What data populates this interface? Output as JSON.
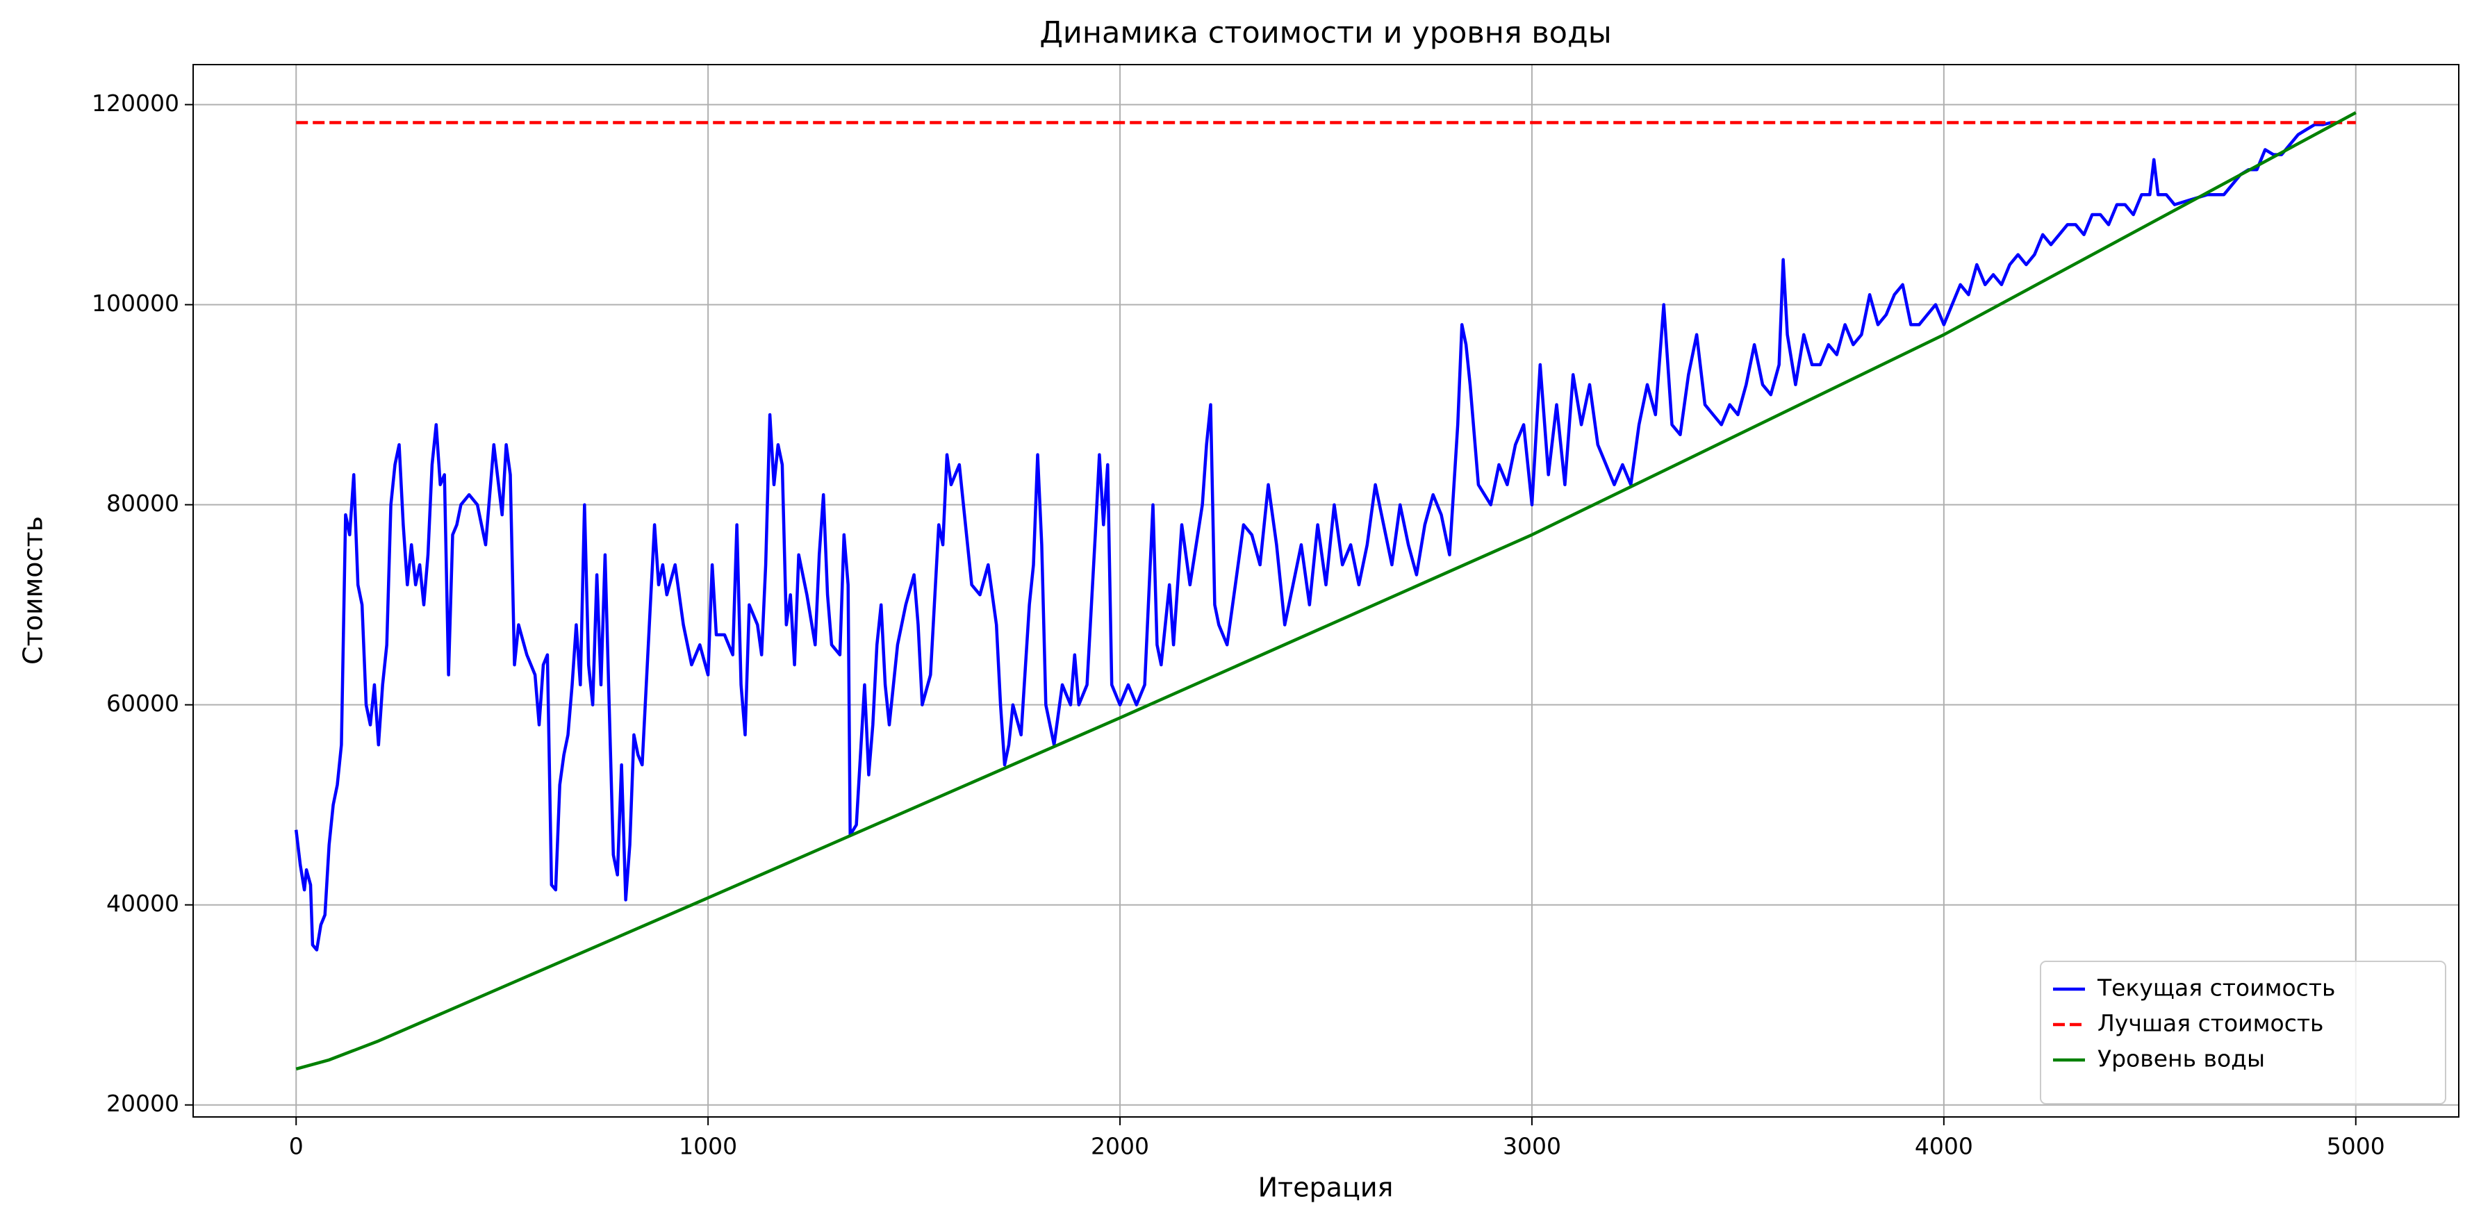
{
  "chart_data": {
    "type": "line",
    "title": "Динамика стоимости и уровня воды",
    "xlabel": "Итерация",
    "ylabel": "Стоимость",
    "xlim": [
      -250,
      5250
    ],
    "ylim": [
      18800,
      124000
    ],
    "xticks": [
      0,
      1000,
      2000,
      3000,
      4000,
      5000
    ],
    "yticks": [
      20000,
      40000,
      60000,
      80000,
      100000,
      120000
    ],
    "grid": true,
    "legend": "lower right",
    "series": [
      {
        "name": "Текущая стоимость",
        "color": "#0000ff",
        "linestyle": "solid",
        "x": [
          0,
          10,
          20,
          25,
          35,
          40,
          50,
          60,
          70,
          80,
          90,
          100,
          110,
          120,
          130,
          140,
          150,
          160,
          170,
          180,
          190,
          200,
          210,
          220,
          230,
          240,
          250,
          260,
          270,
          280,
          290,
          300,
          310,
          320,
          330,
          340,
          350,
          360,
          370,
          380,
          390,
          400,
          420,
          440,
          460,
          480,
          500,
          510,
          520,
          530,
          540,
          560,
          580,
          590,
          600,
          610,
          620,
          630,
          640,
          650,
          660,
          670,
          680,
          690,
          700,
          710,
          720,
          730,
          740,
          750,
          760,
          770,
          780,
          790,
          800,
          810,
          820,
          830,
          840,
          850,
          860,
          870,
          880,
          890,
          900,
          920,
          940,
          960,
          980,
          1000,
          1010,
          1020,
          1040,
          1060,
          1070,
          1080,
          1090,
          1100,
          1120,
          1130,
          1140,
          1150,
          1160,
          1170,
          1180,
          1190,
          1200,
          1210,
          1220,
          1240,
          1260,
          1270,
          1280,
          1290,
          1300,
          1320,
          1330,
          1340,
          1345,
          1360,
          1370,
          1380,
          1390,
          1400,
          1410,
          1420,
          1430,
          1440,
          1460,
          1480,
          1500,
          1510,
          1520,
          1540,
          1560,
          1570,
          1580,
          1590,
          1610,
          1620,
          1640,
          1660,
          1680,
          1700,
          1710,
          1720,
          1730,
          1740,
          1760,
          1780,
          1790,
          1800,
          1810,
          1820,
          1840,
          1860,
          1880,
          1890,
          1900,
          1920,
          1940,
          1950,
          1960,
          1970,
          1980,
          2000,
          2020,
          2040,
          2060,
          2080,
          2090,
          2100,
          2120,
          2130,
          2150,
          2170,
          2200,
          2210,
          2220,
          2230,
          2240,
          2260,
          2280,
          2300,
          2320,
          2340,
          2360,
          2380,
          2400,
          2420,
          2440,
          2460,
          2480,
          2500,
          2520,
          2540,
          2560,
          2580,
          2600,
          2620,
          2640,
          2660,
          2680,
          2700,
          2720,
          2740,
          2760,
          2780,
          2800,
          2820,
          2830,
          2840,
          2850,
          2870,
          2900,
          2920,
          2940,
          2960,
          2980,
          3000,
          3020,
          3040,
          3060,
          3080,
          3100,
          3120,
          3140,
          3160,
          3180,
          3200,
          3220,
          3240,
          3260,
          3280,
          3300,
          3320,
          3340,
          3360,
          3380,
          3400,
          3420,
          3440,
          3460,
          3480,
          3500,
          3520,
          3540,
          3560,
          3580,
          3600,
          3610,
          3620,
          3640,
          3660,
          3680,
          3700,
          3720,
          3740,
          3760,
          3780,
          3800,
          3820,
          3840,
          3860,
          3880,
          3900,
          3920,
          3940,
          3960,
          3980,
          4000,
          4020,
          4040,
          4060,
          4080,
          4100,
          4120,
          4140,
          4160,
          4180,
          4200,
          4220,
          4240,
          4260,
          4280,
          4300,
          4320,
          4340,
          4360,
          4380,
          4400,
          4420,
          4440,
          4460,
          4480,
          4500,
          4510,
          4520,
          4540,
          4560,
          4600,
          4640,
          4680,
          4700,
          4720,
          4740,
          4760,
          4780,
          4800,
          4820,
          4840,
          4860,
          4880,
          4900,
          4920,
          4940,
          4950
        ],
        "values": [
          47500,
          44000,
          41500,
          43500,
          42000,
          36000,
          35500,
          38000,
          39000,
          46000,
          50000,
          52000,
          56000,
          79000,
          77000,
          83000,
          72000,
          70000,
          60000,
          58000,
          62000,
          56000,
          62000,
          66000,
          80000,
          84000,
          86000,
          78000,
          72000,
          76000,
          72000,
          74000,
          70000,
          75000,
          84000,
          88000,
          82000,
          83000,
          63000,
          77000,
          78000,
          80000,
          81000,
          80000,
          76000,
          86000,
          79000,
          86000,
          83000,
          64000,
          68000,
          65000,
          63000,
          58000,
          64000,
          65000,
          42000,
          41500,
          52000,
          55000,
          57000,
          62000,
          68000,
          62000,
          80000,
          64000,
          60000,
          73000,
          62000,
          75000,
          60000,
          45000,
          43000,
          54000,
          40500,
          46000,
          57000,
          55000,
          54000,
          62000,
          70000,
          78000,
          72000,
          74000,
          71000,
          74000,
          68000,
          64000,
          66000,
          63000,
          74000,
          67000,
          67000,
          65000,
          78000,
          62000,
          57000,
          70000,
          68000,
          65000,
          74000,
          89000,
          82000,
          86000,
          84000,
          68000,
          71000,
          64000,
          75000,
          71000,
          66000,
          75000,
          81000,
          71000,
          66000,
          65000,
          77000,
          72000,
          47000,
          48000,
          55000,
          62000,
          53000,
          58000,
          66000,
          70000,
          62000,
          58000,
          66000,
          70000,
          73000,
          68000,
          60000,
          63000,
          78000,
          76000,
          85000,
          82000,
          84000,
          80000,
          72000,
          71000,
          74000,
          68000,
          60000,
          54000,
          56000,
          60000,
          57000,
          70000,
          74000,
          85000,
          76000,
          60000,
          56000,
          62000,
          60000,
          65000,
          60000,
          62000,
          77000,
          85000,
          78000,
          84000,
          62000,
          60000,
          62000,
          60000,
          62000,
          80000,
          66000,
          64000,
          72000,
          66000,
          78000,
          72000,
          80000,
          86000,
          90000,
          70000,
          68000,
          66000,
          72000,
          78000,
          77000,
          74000,
          82000,
          76000,
          68000,
          72000,
          76000,
          70000,
          78000,
          72000,
          80000,
          74000,
          76000,
          72000,
          76000,
          82000,
          78000,
          74000,
          80000,
          76000,
          73000,
          78000,
          81000,
          79000,
          75000,
          88000,
          98000,
          96000,
          92000,
          82000,
          80000,
          84000,
          82000,
          86000,
          88000,
          80000,
          94000,
          83000,
          90000,
          82000,
          93000,
          88000,
          92000,
          86000,
          84000,
          82000,
          84000,
          82000,
          88000,
          92000,
          89000,
          100000,
          88000,
          87000,
          93000,
          97000,
          90000,
          89000,
          88000,
          90000,
          89000,
          92000,
          96000,
          92000,
          91000,
          94000,
          104500,
          97000,
          92000,
          97000,
          94000,
          94000,
          96000,
          95000,
          98000,
          96000,
          97000,
          101000,
          98000,
          99000,
          101000,
          102000,
          98000,
          98000,
          99000,
          100000,
          98000,
          100000,
          102000,
          101000,
          104000,
          102000,
          103000,
          102000,
          104000,
          105000,
          104000,
          105000,
          107000,
          106000,
          107000,
          108000,
          108000,
          107000,
          109000,
          109000,
          108000,
          110000,
          110000,
          109000,
          111000,
          111000,
          114500,
          111000,
          111000,
          110000,
          110500,
          111000,
          111000,
          112000,
          113000,
          113500,
          113500,
          115500,
          115000,
          115000,
          116000,
          117000,
          117500,
          118000,
          118000,
          118200,
          118200
        ]
      },
      {
        "name": "Лучшая стоимость",
        "color": "#ff0000",
        "linestyle": "dashed",
        "x": [
          0,
          5000
        ],
        "values": [
          118200,
          118200
        ]
      },
      {
        "name": "Уровень воды",
        "color": "#008000",
        "linestyle": "solid",
        "x": [
          0,
          80,
          200,
          1000,
          2000,
          3000,
          4000,
          5000
        ],
        "values": [
          23600,
          24500,
          26400,
          40700,
          58700,
          77000,
          97000,
          119200
        ]
      }
    ]
  }
}
